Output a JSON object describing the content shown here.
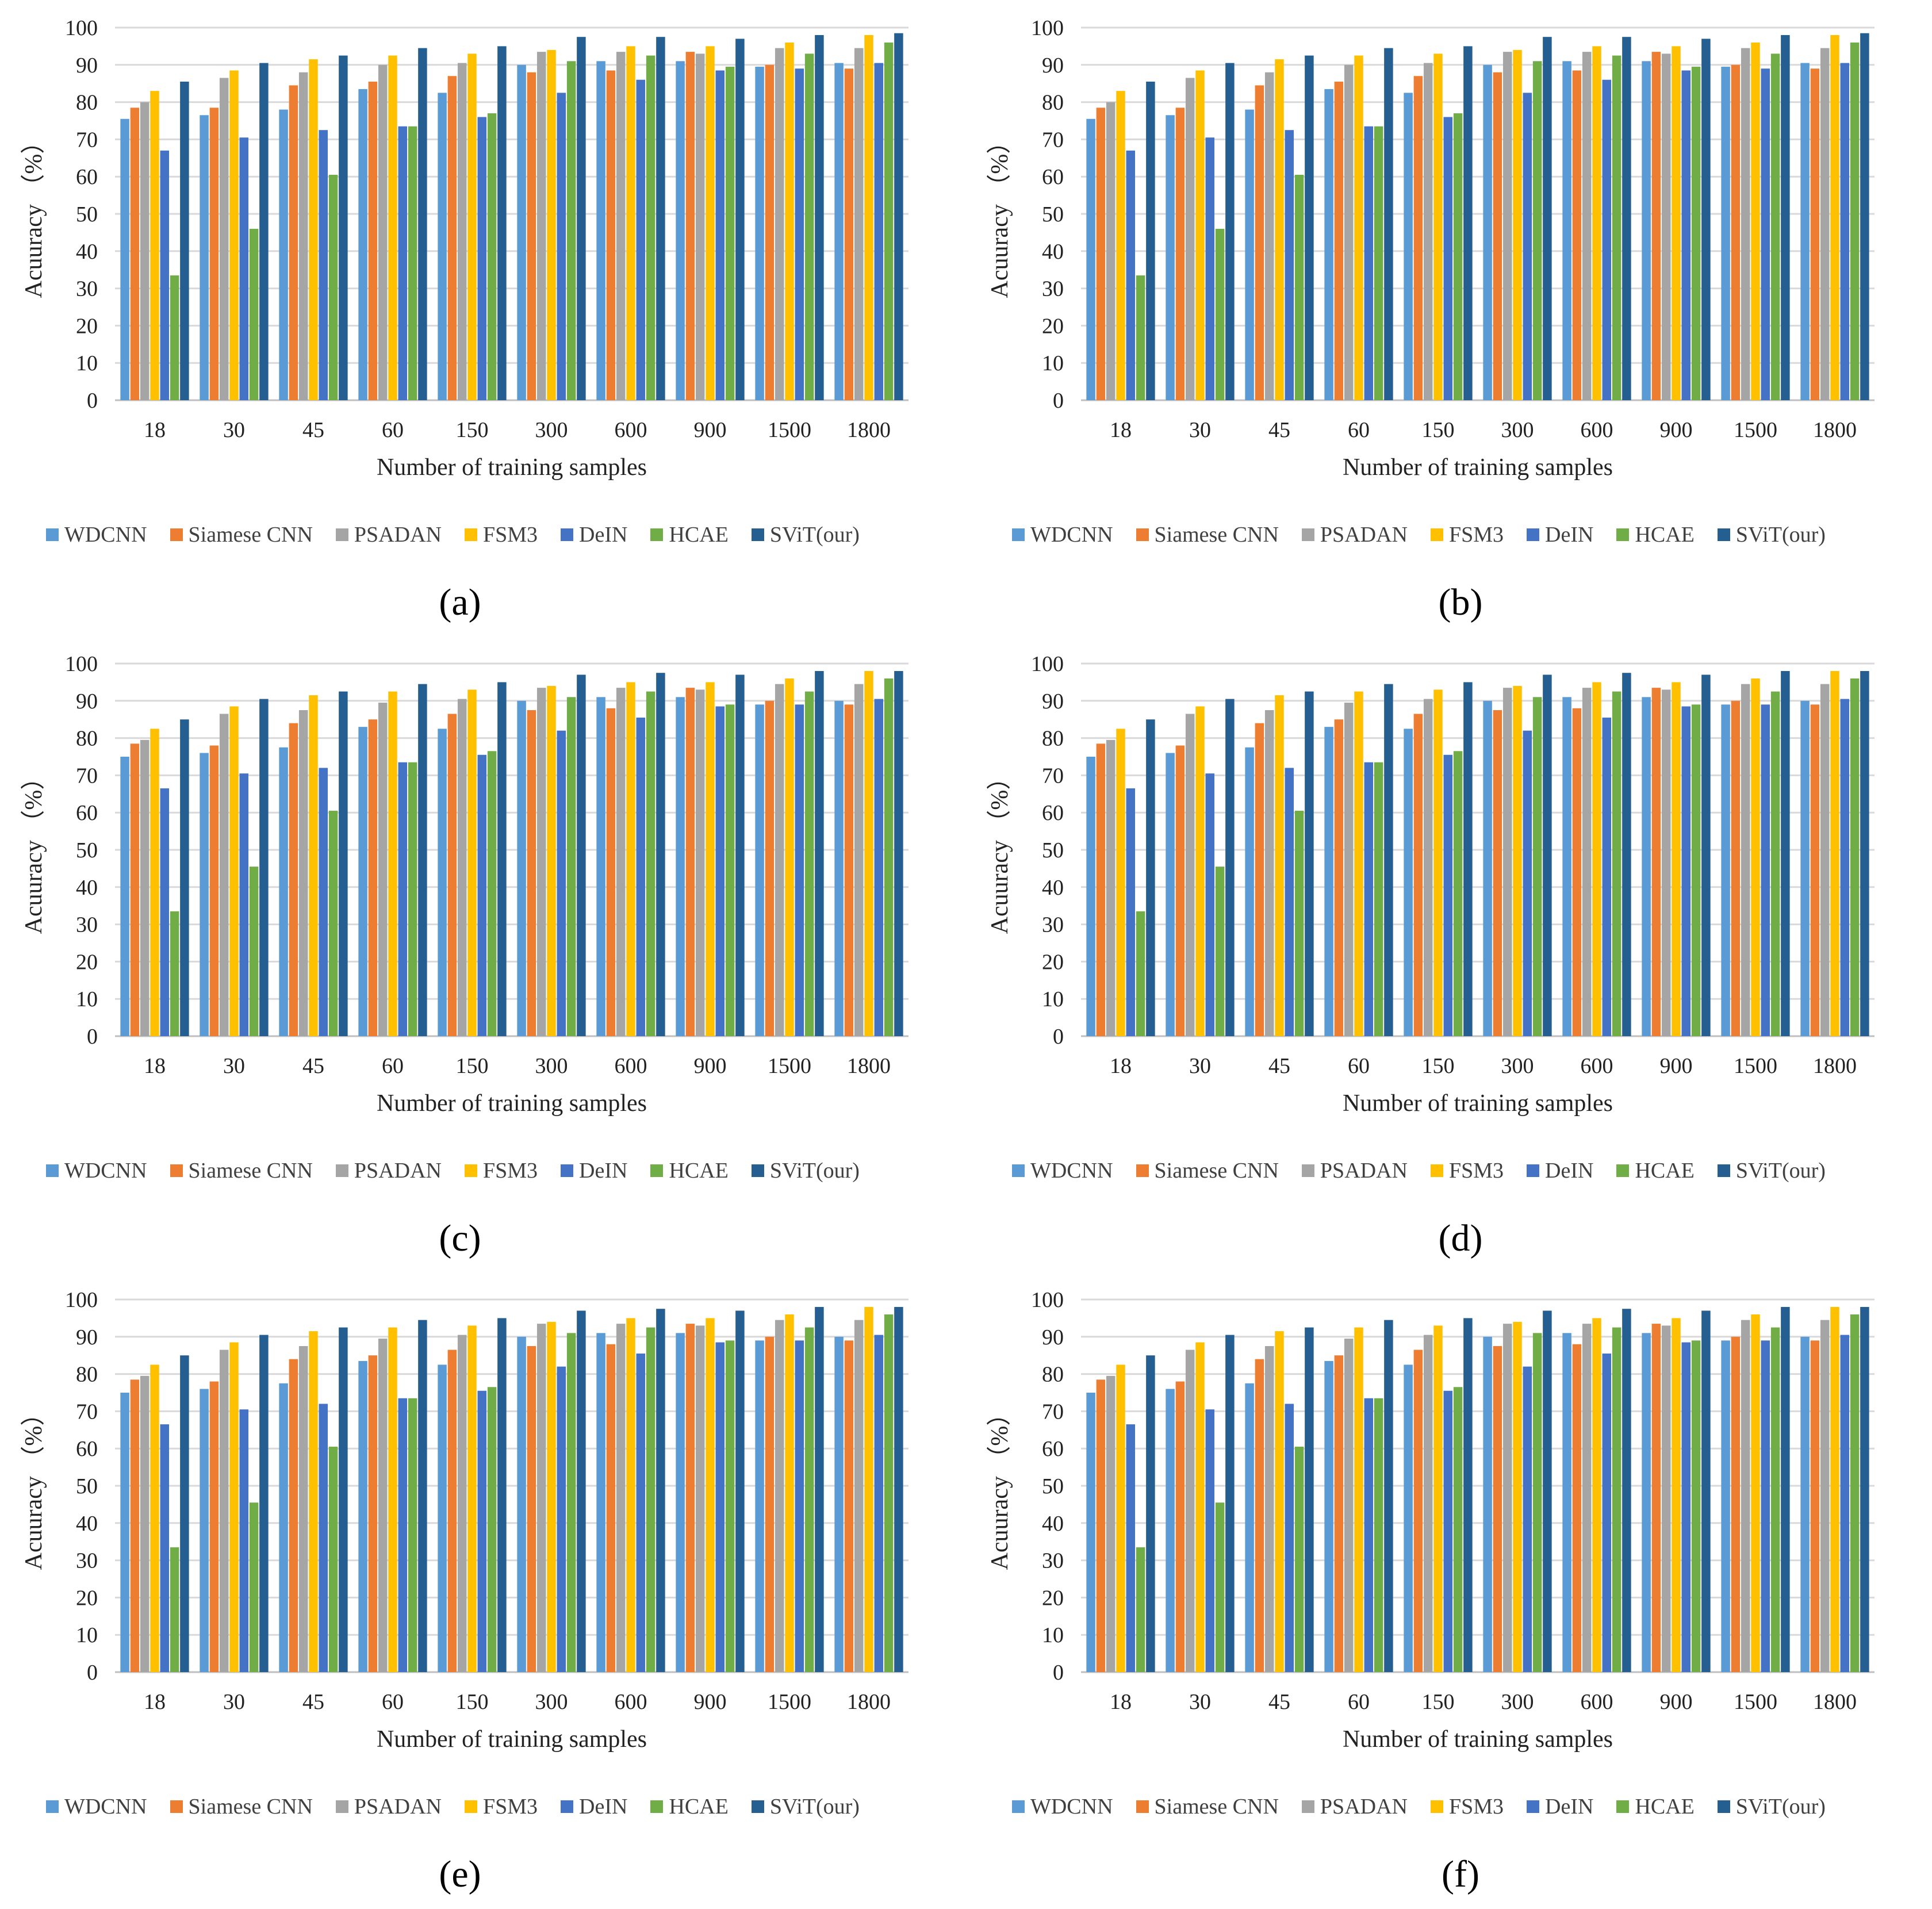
{
  "colors": {
    "WDCNN": "#5B9BD5",
    "Siamese CNN": "#ED7D31",
    "PSADAN": "#A5A5A5",
    "FSM3": "#FFC000",
    "DeIN": "#4472C4",
    "HCAE": "#70AD47",
    "SViT(our)": "#255E91"
  },
  "chart_data": [
    {
      "panel": "(a)",
      "type": "bar",
      "xlabel": "Number of training samples",
      "ylabel": "Acuuracy （%）",
      "ylim": [
        0,
        100
      ],
      "yticks": [
        "0",
        "10",
        "20",
        "30",
        "40",
        "50",
        "60",
        "70",
        "80",
        "90",
        "100"
      ],
      "grid": true,
      "legend_position": "bottom",
      "categories": [
        "18",
        "30",
        "45",
        "60",
        "150",
        "300",
        "600",
        "900",
        "1500",
        "1800"
      ],
      "series": [
        {
          "name": "WDCNN",
          "values": [
            75.5,
            76.5,
            78,
            83.5,
            82.5,
            90,
            91,
            91,
            89.5,
            90.5
          ]
        },
        {
          "name": "Siamese CNN",
          "values": [
            78.5,
            78.5,
            84.5,
            85.5,
            87,
            88,
            88.5,
            93.5,
            90,
            89
          ]
        },
        {
          "name": "PSADAN",
          "values": [
            80,
            86.5,
            88,
            90,
            90.5,
            93.5,
            93.5,
            93,
            94.5,
            94.5
          ]
        },
        {
          "name": "FSM3",
          "values": [
            83,
            88.5,
            91.5,
            92.5,
            93,
            94,
            95,
            95,
            96,
            98
          ]
        },
        {
          "name": "DeIN",
          "values": [
            67,
            70.5,
            72.5,
            73.5,
            76,
            82.5,
            86,
            88.5,
            89,
            90.5
          ]
        },
        {
          "name": "HCAE",
          "values": [
            33.5,
            46,
            60.5,
            73.5,
            77,
            91,
            92.5,
            89.5,
            93,
            96
          ]
        },
        {
          "name": "SViT(our)",
          "values": [
            85.5,
            90.5,
            92.5,
            94.5,
            95,
            97.5,
            97.5,
            97,
            98,
            98.5
          ]
        }
      ]
    },
    {
      "panel": "(b)",
      "type": "bar",
      "xlabel": "Number of training samples",
      "ylabel": "Acuuracy （%）",
      "ylim": [
        0,
        100
      ],
      "yticks": [
        "0",
        "10",
        "20",
        "30",
        "40",
        "50",
        "60",
        "70",
        "80",
        "90",
        "100"
      ],
      "grid": true,
      "legend_position": "bottom",
      "categories": [
        "18",
        "30",
        "45",
        "60",
        "150",
        "300",
        "600",
        "900",
        "1500",
        "1800"
      ],
      "series": [
        {
          "name": "WDCNN",
          "values": [
            75.5,
            76.5,
            78,
            83.5,
            82.5,
            90,
            91,
            91,
            89.5,
            90.5
          ]
        },
        {
          "name": "Siamese CNN",
          "values": [
            78.5,
            78.5,
            84.5,
            85.5,
            87,
            88,
            88.5,
            93.5,
            90,
            89
          ]
        },
        {
          "name": "PSADAN",
          "values": [
            80,
            86.5,
            88,
            90,
            90.5,
            93.5,
            93.5,
            93,
            94.5,
            94.5
          ]
        },
        {
          "name": "FSM3",
          "values": [
            83,
            88.5,
            91.5,
            92.5,
            93,
            94,
            95,
            95,
            96,
            98
          ]
        },
        {
          "name": "DeIN",
          "values": [
            67,
            70.5,
            72.5,
            73.5,
            76,
            82.5,
            86,
            88.5,
            89,
            90.5
          ]
        },
        {
          "name": "HCAE",
          "values": [
            33.5,
            46,
            60.5,
            73.5,
            77,
            91,
            92.5,
            89.5,
            93,
            96
          ]
        },
        {
          "name": "SViT(our)",
          "values": [
            85.5,
            90.5,
            92.5,
            94.5,
            95,
            97.5,
            97.5,
            97,
            98,
            98.5
          ]
        }
      ]
    },
    {
      "panel": "(c)",
      "type": "bar",
      "xlabel": "Number of training samples",
      "ylabel": "Acuuracy （%）",
      "ylim": [
        0,
        100
      ],
      "yticks": [
        "0",
        "10",
        "20",
        "30",
        "40",
        "50",
        "60",
        "70",
        "80",
        "90",
        "100"
      ],
      "grid": true,
      "legend_position": "bottom",
      "categories": [
        "18",
        "30",
        "45",
        "60",
        "150",
        "300",
        "600",
        "900",
        "1500",
        "1800"
      ],
      "series": [
        {
          "name": "WDCNN",
          "values": [
            75,
            76,
            77.5,
            83,
            82.5,
            90,
            91,
            91,
            89,
            90
          ]
        },
        {
          "name": "Siamese CNN",
          "values": [
            78.5,
            78,
            84,
            85,
            86.5,
            87.5,
            88,
            93.5,
            90,
            89
          ]
        },
        {
          "name": "PSADAN",
          "values": [
            79.5,
            86.5,
            87.5,
            89.5,
            90.5,
            93.5,
            93.5,
            93,
            94.5,
            94.5
          ]
        },
        {
          "name": "FSM3",
          "values": [
            82.5,
            88.5,
            91.5,
            92.5,
            93,
            94,
            95,
            95,
            96,
            98
          ]
        },
        {
          "name": "DeIN",
          "values": [
            66.5,
            70.5,
            72,
            73.5,
            75.5,
            82,
            85.5,
            88.5,
            89,
            90.5
          ]
        },
        {
          "name": "HCAE",
          "values": [
            33.5,
            45.5,
            60.5,
            73.5,
            76.5,
            91,
            92.5,
            89,
            92.5,
            96
          ]
        },
        {
          "name": "SViT(our)",
          "values": [
            85,
            90.5,
            92.5,
            94.5,
            95,
            97,
            97.5,
            97,
            98,
            98
          ]
        }
      ]
    },
    {
      "panel": "(d)",
      "type": "bar",
      "xlabel": "Number of training samples",
      "ylabel": "Acuuracy （%）",
      "ylim": [
        0,
        100
      ],
      "yticks": [
        "0",
        "10",
        "20",
        "30",
        "40",
        "50",
        "60",
        "70",
        "80",
        "90",
        "100"
      ],
      "grid": true,
      "legend_position": "bottom",
      "categories": [
        "18",
        "30",
        "45",
        "60",
        "150",
        "300",
        "600",
        "900",
        "1500",
        "1800"
      ],
      "series": [
        {
          "name": "WDCNN",
          "values": [
            75,
            76,
            77.5,
            83,
            82.5,
            90,
            91,
            91,
            89,
            90
          ]
        },
        {
          "name": "Siamese CNN",
          "values": [
            78.5,
            78,
            84,
            85,
            86.5,
            87.5,
            88,
            93.5,
            90,
            89
          ]
        },
        {
          "name": "PSADAN",
          "values": [
            79.5,
            86.5,
            87.5,
            89.5,
            90.5,
            93.5,
            93.5,
            93,
            94.5,
            94.5
          ]
        },
        {
          "name": "FSM3",
          "values": [
            82.5,
            88.5,
            91.5,
            92.5,
            93,
            94,
            95,
            95,
            96,
            98
          ]
        },
        {
          "name": "DeIN",
          "values": [
            66.5,
            70.5,
            72,
            73.5,
            75.5,
            82,
            85.5,
            88.5,
            89,
            90.5
          ]
        },
        {
          "name": "HCAE",
          "values": [
            33.5,
            45.5,
            60.5,
            73.5,
            76.5,
            91,
            92.5,
            89,
            92.5,
            96
          ]
        },
        {
          "name": "SViT(our)",
          "values": [
            85,
            90.5,
            92.5,
            94.5,
            95,
            97,
            97.5,
            97,
            98,
            98
          ]
        }
      ]
    },
    {
      "panel": "(e)",
      "type": "bar",
      "xlabel": "Number of training samples",
      "ylabel": "Acuuracy （%）",
      "ylim": [
        0,
        100
      ],
      "yticks": [
        "0",
        "10",
        "20",
        "30",
        "40",
        "50",
        "60",
        "70",
        "80",
        "90",
        "100"
      ],
      "grid": true,
      "legend_position": "bottom",
      "categories": [
        "18",
        "30",
        "45",
        "60",
        "150",
        "300",
        "600",
        "900",
        "1500",
        "1800"
      ],
      "series": [
        {
          "name": "WDCNN",
          "values": [
            75,
            76,
            77.5,
            83.5,
            82.5,
            90,
            91,
            91,
            89,
            90
          ]
        },
        {
          "name": "Siamese CNN",
          "values": [
            78.5,
            78,
            84,
            85,
            86.5,
            87.5,
            88,
            93.5,
            90,
            89
          ]
        },
        {
          "name": "PSADAN",
          "values": [
            79.5,
            86.5,
            87.5,
            89.5,
            90.5,
            93.5,
            93.5,
            93,
            94.5,
            94.5
          ]
        },
        {
          "name": "FSM3",
          "values": [
            82.5,
            88.5,
            91.5,
            92.5,
            93,
            94,
            95,
            95,
            96,
            98
          ]
        },
        {
          "name": "DeIN",
          "values": [
            66.5,
            70.5,
            72,
            73.5,
            75.5,
            82,
            85.5,
            88.5,
            89,
            90.5
          ]
        },
        {
          "name": "HCAE",
          "values": [
            33.5,
            45.5,
            60.5,
            73.5,
            76.5,
            91,
            92.5,
            89,
            92.5,
            96
          ]
        },
        {
          "name": "SViT(our)",
          "values": [
            85,
            90.5,
            92.5,
            94.5,
            95,
            97,
            97.5,
            97,
            98,
            98
          ]
        }
      ]
    },
    {
      "panel": "(f)",
      "type": "bar",
      "xlabel": "Number of training samples",
      "ylabel": "Acuuracy （%）",
      "ylim": [
        0,
        100
      ],
      "yticks": [
        "0",
        "10",
        "20",
        "30",
        "40",
        "50",
        "60",
        "70",
        "80",
        "90",
        "100"
      ],
      "grid": true,
      "legend_position": "bottom",
      "categories": [
        "18",
        "30",
        "45",
        "60",
        "150",
        "300",
        "600",
        "900",
        "1500",
        "1800"
      ],
      "series": [
        {
          "name": "WDCNN",
          "values": [
            75,
            76,
            77.5,
            83.5,
            82.5,
            90,
            91,
            91,
            89,
            90
          ]
        },
        {
          "name": "Siamese CNN",
          "values": [
            78.5,
            78,
            84,
            85,
            86.5,
            87.5,
            88,
            93.5,
            90,
            89
          ]
        },
        {
          "name": "PSADAN",
          "values": [
            79.5,
            86.5,
            87.5,
            89.5,
            90.5,
            93.5,
            93.5,
            93,
            94.5,
            94.5
          ]
        },
        {
          "name": "FSM3",
          "values": [
            82.5,
            88.5,
            91.5,
            92.5,
            93,
            94,
            95,
            95,
            96,
            98
          ]
        },
        {
          "name": "DeIN",
          "values": [
            66.5,
            70.5,
            72,
            73.5,
            75.5,
            82,
            85.5,
            88.5,
            89,
            90.5
          ]
        },
        {
          "name": "HCAE",
          "values": [
            33.5,
            45.5,
            60.5,
            73.5,
            76.5,
            91,
            92.5,
            89,
            92.5,
            96
          ]
        },
        {
          "name": "SViT(our)",
          "values": [
            85,
            90.5,
            92.5,
            94.5,
            95,
            97,
            97.5,
            97,
            98,
            98
          ]
        }
      ]
    }
  ]
}
